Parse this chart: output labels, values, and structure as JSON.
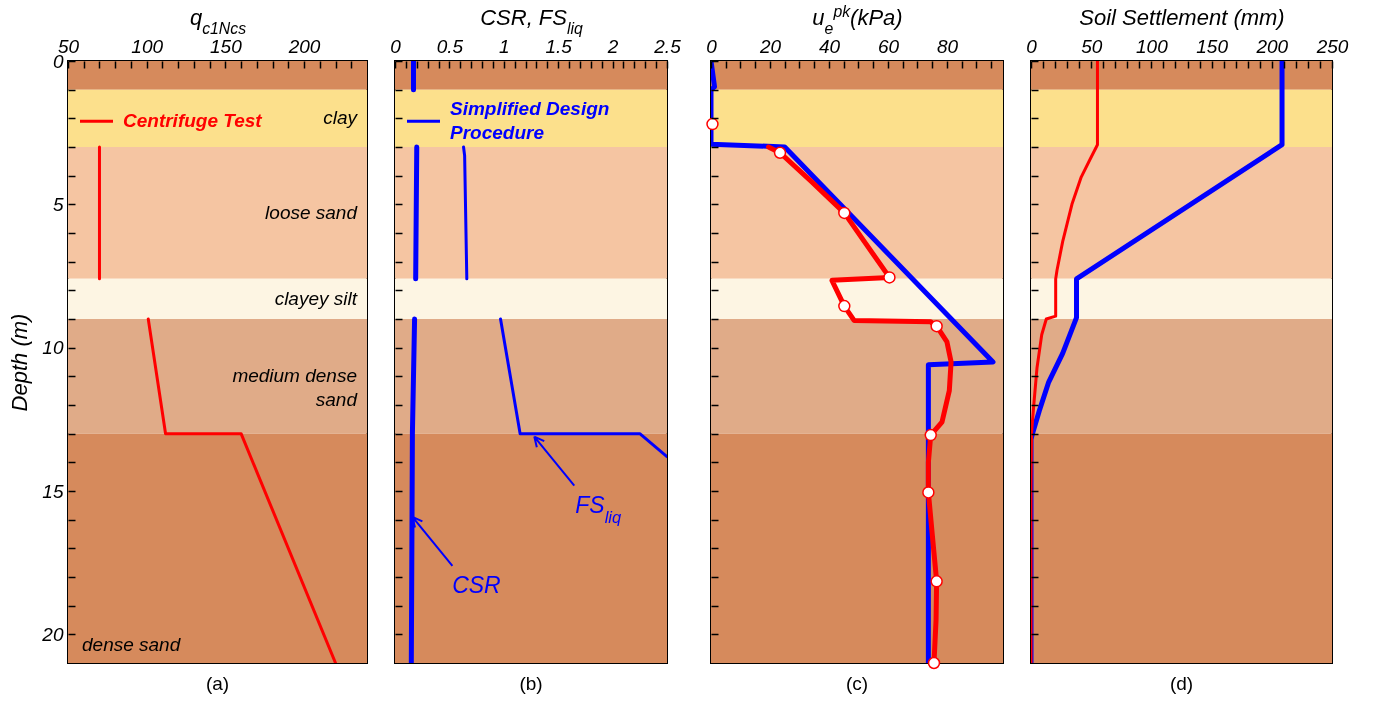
{
  "chart_data": [
    {
      "type": "line",
      "xlabel": "q$_{c1Ncs}$",
      "ylabel": "Depth (m)",
      "xlim": [
        50,
        240
      ],
      "xticks": [
        50,
        {
          "value": 60,
          "label": null
        },
        {
          "value": 70,
          "label": null
        },
        {
          "value": 80,
          "label": null
        },
        {
          "value": 90,
          "label": null
        },
        100,
        {
          "value": 110,
          "label": null
        },
        {
          "value": 120,
          "label": null
        },
        {
          "value": 130,
          "label": null
        },
        {
          "value": 140,
          "label": null
        },
        150,
        {
          "value": 160,
          "label": null
        },
        {
          "value": 170,
          "label": null
        },
        {
          "value": 180,
          "label": null
        },
        {
          "value": 190,
          "label": null
        },
        200,
        {
          "value": 210,
          "label": null
        },
        {
          "value": 220,
          "label": null
        },
        {
          "value": 230,
          "label": null
        }
      ],
      "ylim": [
        21,
        0
      ],
      "yticks": [
        0,
        {
          "value": 1,
          "label": null
        },
        {
          "value": 2,
          "label": null
        },
        {
          "value": 3,
          "label": null
        },
        {
          "value": 4,
          "label": null
        },
        5,
        {
          "value": 6,
          "label": null
        },
        {
          "value": 7,
          "label": null
        },
        {
          "value": 8,
          "label": null
        },
        {
          "value": 9,
          "label": null
        },
        10,
        {
          "value": 11,
          "label": null
        },
        {
          "value": 12,
          "label": null
        },
        {
          "value": 13,
          "label": null
        },
        {
          "value": 14,
          "label": null
        },
        15,
        {
          "value": 16,
          "label": null
        },
        {
          "value": 17,
          "label": null
        },
        {
          "value": 18,
          "label": null
        },
        {
          "value": 19,
          "label": null
        },
        20
      ],
      "legend": "top left",
      "bands": [
        {
          "axis": "y",
          "from": 0,
          "to": 1,
          "color": "#d68a5c"
        },
        {
          "axis": "y",
          "from": 1,
          "to": 3,
          "label": "clay",
          "color": "#fce08c"
        },
        {
          "axis": "y",
          "from": 3,
          "to": 7.6,
          "label": "loose sand",
          "color": "#f5c5a2"
        },
        {
          "axis": "y",
          "from": 7.6,
          "to": 9,
          "label": "clayey silt",
          "color": "#fdf5e3"
        },
        {
          "axis": "y",
          "from": 9,
          "to": 13,
          "label": "medium dense sand",
          "color": "#e0ab88"
        },
        {
          "axis": "y",
          "from": 13,
          "to": 21,
          "label": "dense sand",
          "color": "#d68a5c"
        }
      ],
      "series": [
        {
          "name": "Centrifuge Test",
          "color": "#ff0000",
          "x": [
            70,
            70,
            null,
            101,
            112,
            160,
            220
          ],
          "values": [
            3,
            7.6,
            null,
            9,
            13,
            13,
            21
          ]
        }
      ],
      "annotations": [
        "(a)"
      ]
    },
    {
      "type": "line",
      "xlabel": "CSR, FS$_{liq}$",
      "xlim": [
        0,
        2.5
      ],
      "xticks": [
        0,
        {
          "value": 0.1,
          "label": null
        },
        {
          "value": 0.2,
          "label": null
        },
        {
          "value": 0.3,
          "label": null
        },
        {
          "value": 0.4,
          "label": null
        },
        0.5,
        {
          "value": 0.6,
          "label": null
        },
        {
          "value": 0.7,
          "label": null
        },
        {
          "value": 0.8,
          "label": null
        },
        {
          "value": 0.9,
          "label": null
        },
        1,
        {
          "value": 1.1,
          "label": null
        },
        {
          "value": 1.2,
          "label": null
        },
        {
          "value": 1.3,
          "label": null
        },
        {
          "value": 1.4,
          "label": null
        },
        1.5,
        {
          "value": 1.6,
          "label": null
        },
        {
          "value": 1.7,
          "label": null
        },
        {
          "value": 1.8,
          "label": null
        },
        {
          "value": 1.9,
          "label": null
        },
        2,
        {
          "value": 2.1,
          "label": null
        },
        {
          "value": 2.2,
          "label": null
        },
        {
          "value": 2.3,
          "label": null
        },
        {
          "value": 2.4,
          "label": null
        },
        2.5
      ],
      "ylim": [
        21,
        0
      ],
      "yticks": [
        0,
        {
          "value": 1,
          "label": null
        },
        {
          "value": 2,
          "label": null
        },
        {
          "value": 3,
          "label": null
        },
        {
          "value": 4,
          "label": null
        },
        5,
        {
          "value": 6,
          "label": null
        },
        {
          "value": 7,
          "label": null
        },
        {
          "value": 8,
          "label": null
        },
        {
          "value": 9,
          "label": null
        },
        10,
        {
          "value": 11,
          "label": null
        },
        {
          "value": 12,
          "label": null
        },
        {
          "value": 13,
          "label": null
        },
        {
          "value": 14,
          "label": null
        },
        15,
        {
          "value": 16,
          "label": null
        },
        {
          "value": 17,
          "label": null
        },
        {
          "value": 18,
          "label": null
        },
        {
          "value": 19,
          "label": null
        },
        20
      ],
      "tick_labels": "x",
      "legend": "top left",
      "bands": [
        {
          "axis": "y",
          "from": 0,
          "to": 1,
          "color": "#d68a5c"
        },
        {
          "axis": "y",
          "from": 1,
          "to": 3,
          "color": "#fce08c"
        },
        {
          "axis": "y",
          "from": 3,
          "to": 7.6,
          "color": "#f5c5a2"
        },
        {
          "axis": "y",
          "from": 7.6,
          "to": 9,
          "color": "#fdf5e3"
        },
        {
          "axis": "y",
          "from": 9,
          "to": 13,
          "color": "#e0ab88"
        },
        {
          "axis": "y",
          "from": 13,
          "to": 21,
          "color": "#d68a5c"
        }
      ],
      "series": [
        {
          "name": "Simplified Design Procedure",
          "color": "#0000ff",
          "x": [
            0.17,
            0.17,
            null,
            0.2,
            0.19,
            null,
            0.18,
            0.16,
            0.15
          ],
          "values": [
            0,
            1,
            null,
            3,
            7.6,
            null,
            9,
            13,
            21
          ]
        },
        {
          "color": "#0000ff",
          "x": [
            0.63,
            0.64,
            0.66,
            null,
            0.97,
            1.15,
            2.25,
            2.5
          ],
          "values": [
            3,
            3.3,
            7.6,
            null,
            9,
            13,
            13,
            13.8
          ]
        }
      ],
      "annotations": [
        {
          "text": "FS$_{liq}$",
          "x": 1.28,
          "y": 13.1
        },
        {
          "text": "CSR",
          "x": 0.16,
          "y": 15.9
        },
        "(b)"
      ]
    },
    {
      "type": "line",
      "xlabel": "u$_{e}$$^{pk}$(kPa)",
      "xlim": [
        0,
        99
      ],
      "xticks": [
        0,
        {
          "value": 5,
          "label": null
        },
        {
          "value": 10,
          "label": null
        },
        {
          "value": 15,
          "label": null
        },
        20,
        {
          "value": 25,
          "label": null
        },
        {
          "value": 30,
          "label": null
        },
        {
          "value": 35,
          "label": null
        },
        40,
        {
          "value": 45,
          "label": null
        },
        {
          "value": 50,
          "label": null
        },
        {
          "value": 55,
          "label": null
        },
        60,
        {
          "value": 65,
          "label": null
        },
        {
          "value": 70,
          "label": null
        },
        {
          "value": 75,
          "label": null
        },
        80,
        {
          "value": 85,
          "label": null
        },
        {
          "value": 90,
          "label": null
        },
        {
          "value": 95,
          "label": null
        }
      ],
      "ylim": [
        21,
        0
      ],
      "yticks": [
        0,
        {
          "value": 1,
          "label": null
        },
        {
          "value": 2,
          "label": null
        },
        {
          "value": 3,
          "label": null
        },
        {
          "value": 4,
          "label": null
        },
        5,
        {
          "value": 6,
          "label": null
        },
        {
          "value": 7,
          "label": null
        },
        {
          "value": 8,
          "label": null
        },
        {
          "value": 9,
          "label": null
        },
        10,
        {
          "value": 11,
          "label": null
        },
        {
          "value": 12,
          "label": null
        },
        {
          "value": 13,
          "label": null
        },
        {
          "value": 14,
          "label": null
        },
        15,
        {
          "value": 16,
          "label": null
        },
        {
          "value": 17,
          "label": null
        },
        {
          "value": 18,
          "label": null
        },
        {
          "value": 19,
          "label": null
        },
        20
      ],
      "tick_labels": "x",
      "bands": [
        {
          "axis": "y",
          "from": 0,
          "to": 1,
          "color": "#d68a5c"
        },
        {
          "axis": "y",
          "from": 1,
          "to": 3,
          "color": "#fce08c"
        },
        {
          "axis": "y",
          "from": 3,
          "to": 7.6,
          "color": "#f5c5a2"
        },
        {
          "axis": "y",
          "from": 7.6,
          "to": 9,
          "color": "#fdf5e3"
        },
        {
          "axis": "y",
          "from": 9,
          "to": 13,
          "color": "#e0ab88"
        },
        {
          "axis": "y",
          "from": 13,
          "to": 21,
          "color": "#d68a5c"
        }
      ],
      "series": [
        {
          "color": "#0000ff",
          "x": [
            0,
            1.2,
            0,
            0,
            25,
            95.6,
            73.7,
            73.7
          ],
          "values": [
            0,
            0.9,
            1,
            2.9,
            3,
            10.5,
            10.6,
            21
          ]
        },
        {
          "color": "#ff0000",
          "x": [
            19.5,
            23.4,
            34,
            45.2,
            52,
            60.5,
            41,
            45.2,
            48.5,
            74.5,
            76.5,
            80,
            81.4,
            80.8,
            78.3,
            74.5,
            73.7,
            73.7,
            75,
            76.5,
            76.3,
            75.6
          ],
          "values": [
            3,
            3.2,
            4.2,
            5.3,
            6.3,
            7.55,
            7.65,
            8.55,
            9.05,
            9.1,
            9.25,
            9.8,
            10.5,
            11.5,
            12.6,
            13.05,
            14,
            15.05,
            16.5,
            18.15,
            19.5,
            21
          ]
        },
        {
          "type": "scatter",
          "marker": "circle",
          "color": "#ff0000",
          "x": [
            0.5,
            23.4,
            45.2,
            60.5,
            45.2,
            76.5,
            74.5,
            73.7,
            76.5,
            75.6
          ],
          "values": [
            2.2,
            3.2,
            5.3,
            7.55,
            8.55,
            9.25,
            13.05,
            15.05,
            18.15,
            21
          ]
        }
      ],
      "annotations": [
        "(c)"
      ]
    },
    {
      "type": "line",
      "xlabel": "Soil Settlement (mm)",
      "xlim": [
        0,
        250
      ],
      "xticks": [
        0,
        {
          "value": 10,
          "label": null
        },
        {
          "value": 20,
          "label": null
        },
        {
          "value": 30,
          "label": null
        },
        {
          "value": 40,
          "label": null
        },
        50,
        {
          "value": 60,
          "label": null
        },
        {
          "value": 70,
          "label": null
        },
        {
          "value": 80,
          "label": null
        },
        {
          "value": 90,
          "label": null
        },
        100,
        {
          "value": 110,
          "label": null
        },
        {
          "value": 120,
          "label": null
        },
        {
          "value": 130,
          "label": null
        },
        {
          "value": 140,
          "label": null
        },
        150,
        {
          "value": 160,
          "label": null
        },
        {
          "value": 170,
          "label": null
        },
        {
          "value": 180,
          "label": null
        },
        {
          "value": 190,
          "label": null
        },
        200,
        {
          "value": 210,
          "label": null
        },
        {
          "value": 220,
          "label": null
        },
        {
          "value": 230,
          "label": null
        },
        {
          "value": 240,
          "label": null
        },
        250
      ],
      "ylim": [
        21,
        0
      ],
      "yticks": [
        0,
        {
          "value": 1,
          "label": null
        },
        {
          "value": 2,
          "label": null
        },
        {
          "value": 3,
          "label": null
        },
        {
          "value": 4,
          "label": null
        },
        5,
        {
          "value": 6,
          "label": null
        },
        {
          "value": 7,
          "label": null
        },
        {
          "value": 8,
          "label": null
        },
        {
          "value": 9,
          "label": null
        },
        10,
        {
          "value": 11,
          "label": null
        },
        {
          "value": 12,
          "label": null
        },
        {
          "value": 13,
          "label": null
        },
        {
          "value": 14,
          "label": null
        },
        15,
        {
          "value": 16,
          "label": null
        },
        {
          "value": 17,
          "label": null
        },
        {
          "value": 18,
          "label": null
        },
        {
          "value": 19,
          "label": null
        },
        20
      ],
      "tick_labels": "x",
      "bands": [
        {
          "axis": "y",
          "from": 0,
          "to": 1,
          "color": "#d68a5c"
        },
        {
          "axis": "y",
          "from": 1,
          "to": 3,
          "color": "#fce08c"
        },
        {
          "axis": "y",
          "from": 3,
          "to": 7.6,
          "color": "#f5c5a2"
        },
        {
          "axis": "y",
          "from": 7.6,
          "to": 9,
          "color": "#fdf5e3"
        },
        {
          "axis": "y",
          "from": 9,
          "to": 13,
          "color": "#e0ab88"
        },
        {
          "axis": "y",
          "from": 13,
          "to": 21,
          "color": "#d68a5c"
        }
      ],
      "series": [
        {
          "color": "#0000ff",
          "x": [
            208.5,
            208.5,
            37.8,
            37.8,
            26.3,
            14.7,
            6.9,
            1.2,
            0,
            0
          ],
          "values": [
            0,
            2.92,
            7.6,
            8.95,
            10.2,
            11.2,
            12.2,
            13,
            13.2,
            21
          ]
        },
        {
          "color": "#ff0000",
          "x": [
            55.2,
            55.2,
            49.4,
            41.7,
            34,
            26.3,
            21.6,
            20.5,
            20.5,
            12.7,
            8.9,
            5,
            2.3,
            0.4,
            0,
            0
          ],
          "values": [
            0,
            2.92,
            3.4,
            4.05,
            5,
            6.3,
            7.3,
            7.6,
            8.9,
            9,
            9.55,
            10.7,
            12,
            13,
            14.8,
            21
          ]
        }
      ],
      "annotations": [
        "(d)"
      ]
    }
  ]
}
